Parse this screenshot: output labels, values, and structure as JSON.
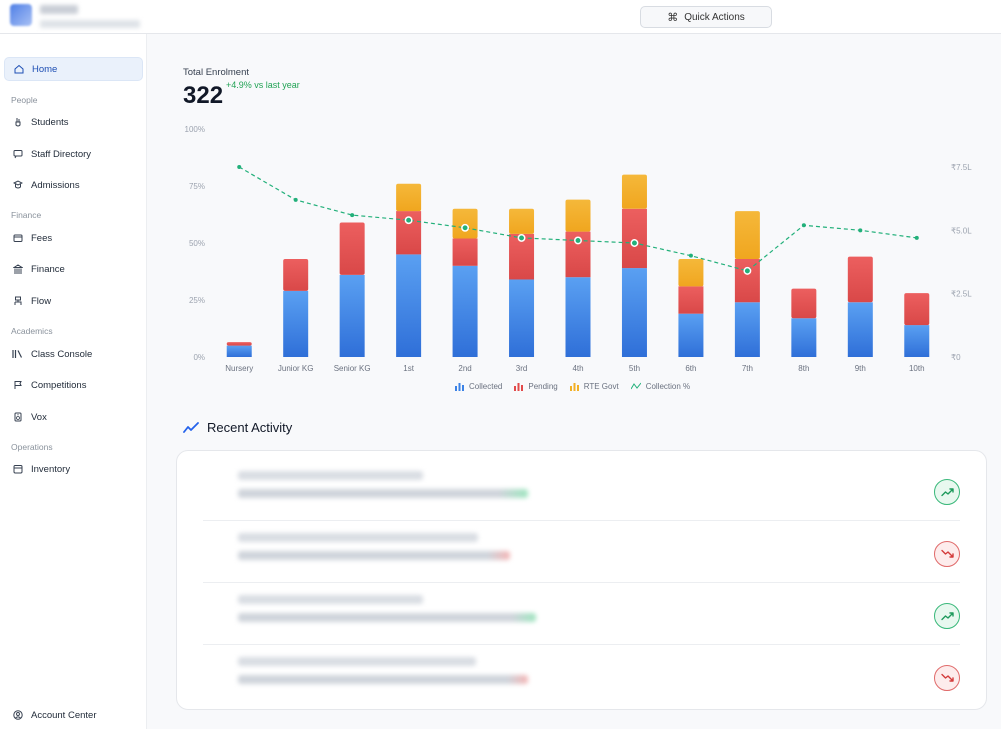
{
  "header": {
    "quick_actions_label": "Quick Actions",
    "quick_actions_icon": "command-icon"
  },
  "sidebar": {
    "home": "Home",
    "sections": {
      "people": "People",
      "finance": "Finance",
      "academics": "Academics",
      "operations": "Operations"
    },
    "items": {
      "students": "Students",
      "staff_directory": "Staff Directory",
      "admissions": "Admissions",
      "fees": "Fees",
      "finance": "Finance",
      "flow": "Flow",
      "class_console": "Class Console",
      "competitions": "Competitions",
      "vox": "Vox",
      "inventory": "Inventory"
    },
    "account_center": "Account Center"
  },
  "kpi": {
    "label": "Total Enrolment",
    "value": "322",
    "delta": "+4.9% vs last year",
    "delta_color": "#22a355"
  },
  "chart_data": {
    "type": "bar",
    "stacked": true,
    "categories": [
      "Nursery",
      "Junior KG",
      "Senior KG",
      "1st",
      "2nd",
      "3rd",
      "4th",
      "5th",
      "6th",
      "7th",
      "8th",
      "9th",
      "10th"
    ],
    "y_left_ticks": [
      "0%",
      "25%",
      "50%",
      "75%",
      "100%"
    ],
    "y_left_range": [
      0,
      100
    ],
    "y_right_ticks": [
      "₹0",
      "₹2.5L",
      "₹5.0L",
      "₹7.5L"
    ],
    "y_right_range": [
      0,
      9
    ],
    "series": [
      {
        "name": "Collected",
        "color": "#3b82e6",
        "values": [
          5,
          29,
          36,
          45,
          40,
          34,
          35,
          39,
          19,
          24,
          17,
          24,
          14
        ]
      },
      {
        "name": "Pending",
        "color": "#e24a4a",
        "values": [
          1.5,
          14,
          23,
          19,
          12,
          20,
          20,
          26,
          12,
          19,
          13,
          20,
          14
        ]
      },
      {
        "name": "RTE Govt",
        "color": "#f2b025",
        "values": [
          0,
          0,
          0,
          12,
          13,
          11,
          14,
          15,
          12,
          21,
          0,
          0,
          0
        ]
      },
      {
        "name": "Collection %",
        "type": "line",
        "color": "#22b07a",
        "values": [
          7.5,
          6.2,
          5.6,
          5.4,
          5.1,
          4.7,
          4.6,
          4.5,
          4.0,
          3.4,
          5.2,
          5.0,
          4.7
        ]
      }
    ],
    "line_markers_on": [
      "1st",
      "2nd",
      "3rd",
      "4th",
      "5th",
      "7th"
    ],
    "grid": false,
    "legend_position": "bottom-center"
  },
  "recent_activity": {
    "title": "Recent Activity",
    "title_icon": "trending-icon",
    "rows": [
      {
        "trend": "up",
        "trend_icon": "trend-up-icon"
      },
      {
        "trend": "down",
        "trend_icon": "trend-down-icon"
      },
      {
        "trend": "up",
        "trend_icon": "trend-up-icon"
      },
      {
        "trend": "down",
        "trend_icon": "trend-down-icon"
      }
    ]
  }
}
